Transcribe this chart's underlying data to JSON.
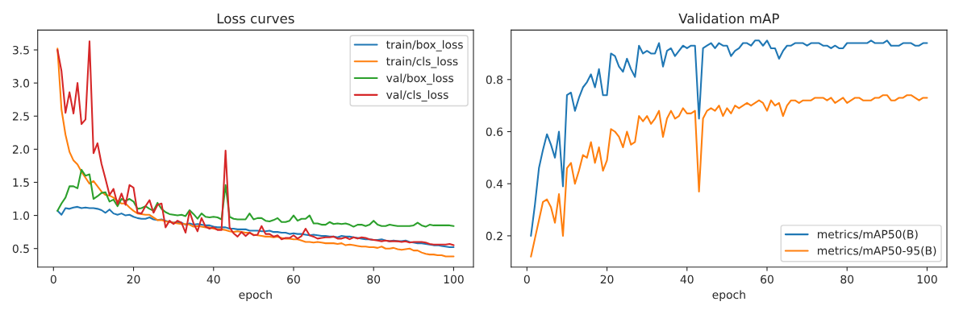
{
  "chart_data": [
    {
      "type": "line",
      "title": "Loss curves",
      "xlabel": "epoch",
      "legend": "top right",
      "grid": false,
      "x": [
        1,
        2,
        3,
        4,
        5,
        6,
        7,
        8,
        9,
        10,
        11,
        12,
        13,
        14,
        15,
        16,
        17,
        18,
        19,
        20,
        21,
        22,
        23,
        24,
        25,
        26,
        27,
        28,
        29,
        30,
        31,
        32,
        33,
        34,
        35,
        36,
        37,
        38,
        39,
        40,
        41,
        42,
        43,
        44,
        45,
        46,
        47,
        48,
        49,
        50,
        51,
        52,
        53,
        54,
        55,
        56,
        57,
        58,
        59,
        60,
        61,
        62,
        63,
        64,
        65,
        66,
        67,
        68,
        69,
        70,
        71,
        72,
        73,
        74,
        75,
        76,
        77,
        78,
        79,
        80,
        81,
        82,
        83,
        84,
        85,
        86,
        87,
        88,
        89,
        90,
        91,
        92,
        93,
        94,
        95,
        96,
        97,
        98,
        99,
        100
      ],
      "xlim": [
        -3.95,
        104.95
      ],
      "xticks": [
        0,
        20,
        40,
        60,
        80,
        100
      ],
      "ylim": [
        0.22,
        3.8
      ],
      "yticks": [
        0.5,
        {
          "value": 1.0,
          "label": "1.0"
        },
        1.5,
        {
          "value": 2.0,
          "label": "2.0"
        },
        2.5,
        {
          "value": 3.0,
          "label": "3.0"
        },
        3.5
      ],
      "series": [
        {
          "name": "train/box_loss",
          "color": "#1f77b4",
          "values": [
            1.07,
            1.01,
            1.11,
            1.1,
            1.12,
            1.13,
            1.11,
            1.12,
            1.11,
            1.11,
            1.1,
            1.08,
            1.04,
            1.09,
            1.03,
            1.01,
            1.03,
            1.0,
            1.01,
            0.98,
            0.96,
            0.95,
            0.95,
            0.97,
            0.94,
            0.93,
            0.94,
            0.92,
            0.9,
            0.89,
            0.9,
            0.89,
            0.86,
            0.88,
            0.86,
            0.87,
            0.86,
            0.85,
            0.85,
            0.83,
            0.82,
            0.82,
            0.82,
            0.8,
            0.8,
            0.79,
            0.79,
            0.79,
            0.77,
            0.77,
            0.77,
            0.76,
            0.76,
            0.77,
            0.75,
            0.75,
            0.74,
            0.74,
            0.72,
            0.73,
            0.72,
            0.72,
            0.71,
            0.7,
            0.71,
            0.7,
            0.69,
            0.69,
            0.68,
            0.68,
            0.67,
            0.69,
            0.68,
            0.68,
            0.67,
            0.66,
            0.65,
            0.64,
            0.64,
            0.63,
            0.63,
            0.64,
            0.62,
            0.61,
            0.62,
            0.61,
            0.61,
            0.62,
            0.6,
            0.59,
            0.58,
            0.58,
            0.57,
            0.56,
            0.55,
            0.55,
            0.54,
            0.53,
            0.52,
            0.52
          ]
        },
        {
          "name": "train/cls_loss",
          "color": "#ff7f0e",
          "values": [
            3.52,
            2.6,
            2.22,
            1.96,
            1.83,
            1.77,
            1.66,
            1.57,
            1.48,
            1.52,
            1.44,
            1.36,
            1.31,
            1.3,
            1.27,
            1.22,
            1.18,
            1.18,
            1.12,
            1.07,
            1.03,
            1.02,
            1.01,
            1.01,
            0.97,
            0.93,
            0.93,
            0.91,
            0.9,
            0.89,
            0.88,
            0.87,
            0.87,
            0.86,
            0.83,
            0.84,
            0.83,
            0.82,
            0.82,
            0.8,
            0.79,
            0.79,
            0.78,
            0.76,
            0.75,
            0.76,
            0.75,
            0.74,
            0.74,
            0.71,
            0.7,
            0.69,
            0.68,
            0.68,
            0.67,
            0.68,
            0.66,
            0.65,
            0.65,
            0.64,
            0.64,
            0.62,
            0.6,
            0.6,
            0.59,
            0.6,
            0.59,
            0.58,
            0.58,
            0.58,
            0.57,
            0.58,
            0.55,
            0.56,
            0.55,
            0.54,
            0.53,
            0.53,
            0.52,
            0.52,
            0.51,
            0.53,
            0.5,
            0.5,
            0.51,
            0.49,
            0.48,
            0.49,
            0.5,
            0.47,
            0.47,
            0.44,
            0.42,
            0.41,
            0.41,
            0.4,
            0.4,
            0.38,
            0.38,
            0.38
          ]
        },
        {
          "name": "val/box_loss",
          "color": "#2ca02c",
          "values": [
            1.07,
            1.18,
            1.27,
            1.44,
            1.44,
            1.41,
            1.69,
            1.6,
            1.62,
            1.25,
            1.29,
            1.34,
            1.35,
            1.21,
            1.24,
            1.14,
            1.25,
            1.22,
            1.25,
            1.21,
            1.1,
            1.11,
            1.14,
            1.1,
            1.07,
            1.19,
            1.1,
            1.05,
            1.02,
            1.01,
            1.0,
            1.01,
            0.99,
            1.08,
            1.02,
            0.95,
            1.03,
            0.98,
            0.97,
            0.98,
            0.97,
            0.94,
            1.46,
            0.98,
            0.95,
            0.94,
            0.94,
            0.94,
            1.03,
            0.94,
            0.96,
            0.96,
            0.92,
            0.91,
            0.93,
            0.96,
            0.9,
            0.9,
            0.92,
            1.0,
            0.92,
            0.95,
            0.95,
            1.0,
            0.88,
            0.88,
            0.86,
            0.86,
            0.9,
            0.87,
            0.88,
            0.87,
            0.88,
            0.86,
            0.83,
            0.86,
            0.86,
            0.84,
            0.86,
            0.92,
            0.86,
            0.84,
            0.84,
            0.86,
            0.85,
            0.84,
            0.84,
            0.84,
            0.84,
            0.85,
            0.89,
            0.85,
            0.83,
            0.86,
            0.85,
            0.85,
            0.85,
            0.85,
            0.85,
            0.84
          ]
        },
        {
          "name": "val/cls_loss",
          "color": "#d62728",
          "values": [
            3.5,
            3.18,
            2.55,
            2.86,
            2.54,
            3.0,
            2.38,
            2.45,
            3.63,
            1.94,
            2.09,
            1.78,
            1.55,
            1.31,
            1.4,
            1.17,
            1.33,
            1.16,
            1.46,
            1.42,
            1.04,
            1.03,
            1.14,
            1.23,
            1.04,
            1.16,
            1.18,
            0.82,
            0.92,
            0.87,
            0.92,
            0.89,
            0.74,
            1.06,
            0.88,
            0.76,
            0.96,
            0.83,
            0.8,
            0.82,
            0.78,
            0.78,
            1.98,
            0.82,
            0.73,
            0.68,
            0.75,
            0.69,
            0.74,
            0.7,
            0.71,
            0.84,
            0.72,
            0.72,
            0.68,
            0.7,
            0.64,
            0.66,
            0.66,
            0.7,
            0.65,
            0.69,
            0.8,
            0.7,
            0.68,
            0.65,
            0.66,
            0.67,
            0.67,
            0.68,
            0.65,
            0.65,
            0.67,
            0.64,
            0.67,
            0.65,
            0.67,
            0.66,
            0.64,
            0.63,
            0.62,
            0.61,
            0.62,
            0.61,
            0.61,
            0.61,
            0.6,
            0.61,
            0.59,
            0.6,
            0.6,
            0.6,
            0.59,
            0.57,
            0.56,
            0.56,
            0.56,
            0.56,
            0.57,
            0.55
          ]
        }
      ]
    },
    {
      "type": "line",
      "title": "Validation mAP",
      "xlabel": "epoch",
      "legend": "bottom right",
      "grid": false,
      "x": [
        1,
        2,
        3,
        4,
        5,
        6,
        7,
        8,
        9,
        10,
        11,
        12,
        13,
        14,
        15,
        16,
        17,
        18,
        19,
        20,
        21,
        22,
        23,
        24,
        25,
        26,
        27,
        28,
        29,
        30,
        31,
        32,
        33,
        34,
        35,
        36,
        37,
        38,
        39,
        40,
        41,
        42,
        43,
        44,
        45,
        46,
        47,
        48,
        49,
        50,
        51,
        52,
        53,
        54,
        55,
        56,
        57,
        58,
        59,
        60,
        61,
        62,
        63,
        64,
        65,
        66,
        67,
        68,
        69,
        70,
        71,
        72,
        73,
        74,
        75,
        76,
        77,
        78,
        79,
        80,
        81,
        82,
        83,
        84,
        85,
        86,
        87,
        88,
        89,
        90,
        91,
        92,
        93,
        94,
        95,
        96,
        97,
        98,
        99,
        100
      ],
      "xlim": [
        -3.95,
        104.95
      ],
      "xticks": [
        0,
        20,
        40,
        60,
        80,
        100
      ],
      "ylim": [
        0.08,
        0.99
      ],
      "yticks": [
        0.2,
        0.4,
        0.6,
        0.8
      ],
      "series": [
        {
          "name": "metrics/mAP50(B)",
          "color": "#1f77b4",
          "values": [
            0.2,
            0.32,
            0.46,
            0.53,
            0.59,
            0.55,
            0.5,
            0.6,
            0.39,
            0.74,
            0.75,
            0.68,
            0.73,
            0.77,
            0.79,
            0.82,
            0.77,
            0.84,
            0.74,
            0.74,
            0.9,
            0.89,
            0.85,
            0.83,
            0.88,
            0.84,
            0.81,
            0.93,
            0.9,
            0.91,
            0.9,
            0.9,
            0.94,
            0.85,
            0.91,
            0.92,
            0.89,
            0.91,
            0.93,
            0.92,
            0.93,
            0.93,
            0.65,
            0.92,
            0.93,
            0.94,
            0.92,
            0.94,
            0.93,
            0.93,
            0.89,
            0.91,
            0.92,
            0.94,
            0.94,
            0.93,
            0.95,
            0.95,
            0.93,
            0.95,
            0.92,
            0.92,
            0.88,
            0.91,
            0.93,
            0.93,
            0.94,
            0.94,
            0.94,
            0.93,
            0.94,
            0.94,
            0.94,
            0.93,
            0.93,
            0.92,
            0.93,
            0.92,
            0.92,
            0.94,
            0.94,
            0.94,
            0.94,
            0.94,
            0.94,
            0.95,
            0.94,
            0.94,
            0.94,
            0.95,
            0.93,
            0.93,
            0.93,
            0.94,
            0.94,
            0.94,
            0.93,
            0.93,
            0.94,
            0.94
          ]
        },
        {
          "name": "metrics/mAP50-95(B)",
          "color": "#ff7f0e",
          "values": [
            0.12,
            0.19,
            0.26,
            0.33,
            0.34,
            0.31,
            0.25,
            0.36,
            0.2,
            0.46,
            0.48,
            0.4,
            0.45,
            0.51,
            0.5,
            0.56,
            0.48,
            0.54,
            0.45,
            0.49,
            0.61,
            0.6,
            0.58,
            0.54,
            0.6,
            0.55,
            0.56,
            0.66,
            0.64,
            0.66,
            0.63,
            0.65,
            0.68,
            0.58,
            0.65,
            0.68,
            0.65,
            0.66,
            0.69,
            0.67,
            0.67,
            0.68,
            0.37,
            0.65,
            0.68,
            0.69,
            0.68,
            0.7,
            0.66,
            0.69,
            0.67,
            0.7,
            0.69,
            0.7,
            0.71,
            0.7,
            0.71,
            0.72,
            0.71,
            0.68,
            0.72,
            0.7,
            0.71,
            0.66,
            0.7,
            0.72,
            0.72,
            0.71,
            0.72,
            0.72,
            0.72,
            0.73,
            0.73,
            0.73,
            0.72,
            0.73,
            0.71,
            0.72,
            0.73,
            0.71,
            0.72,
            0.73,
            0.73,
            0.72,
            0.72,
            0.72,
            0.73,
            0.73,
            0.74,
            0.74,
            0.72,
            0.72,
            0.73,
            0.73,
            0.74,
            0.74,
            0.73,
            0.72,
            0.73,
            0.73
          ]
        }
      ]
    }
  ]
}
